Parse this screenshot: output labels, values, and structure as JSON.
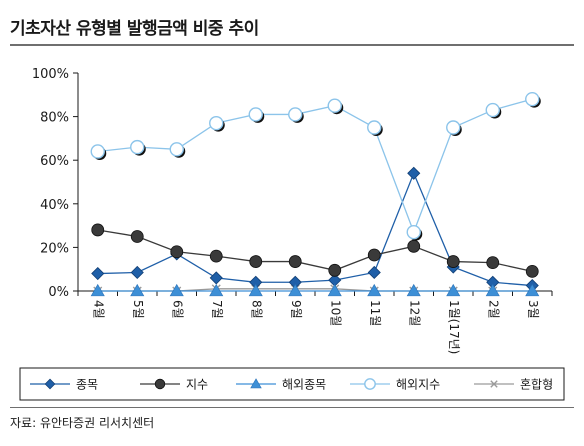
{
  "title": "기초자산 유형별 발행금액 비중 추이",
  "source": "자료: 유안타증권 리서치센터",
  "chart_data": {
    "type": "line",
    "categories": [
      "4월",
      "5월",
      "6월",
      "7월",
      "8월",
      "9월",
      "10월",
      "11월",
      "12월",
      "1월(17년)",
      "2월",
      "3월"
    ],
    "y_tick_labels": [
      "0%",
      "20%",
      "40%",
      "60%",
      "80%",
      "100%"
    ],
    "ylim": [
      0,
      100
    ],
    "grid": false,
    "legend_position": "bottom",
    "series": [
      {
        "name": "종목",
        "color": "#1f5fa8",
        "marker": "diamond",
        "values": [
          8,
          8.5,
          17,
          6,
          4,
          4,
          5,
          8.5,
          54,
          11,
          4,
          2.5
        ]
      },
      {
        "name": "지수",
        "color": "#3a3a3a",
        "marker": "circle",
        "values": [
          28,
          25,
          18,
          16,
          13.5,
          13.5,
          9.5,
          16.5,
          20.5,
          13.5,
          13,
          9
        ]
      },
      {
        "name": "해외종목",
        "color": "#3d8fd6",
        "marker": "triangle",
        "values": [
          0,
          0,
          0,
          0,
          0,
          0,
          0,
          0,
          0,
          0,
          0,
          0
        ]
      },
      {
        "name": "해외지수",
        "color": "#8cc4ea",
        "marker": "circle-open",
        "values": [
          64,
          66,
          65,
          77,
          81,
          81,
          85,
          75,
          27,
          75,
          83,
          88
        ]
      },
      {
        "name": "혼합형",
        "color": "#9a9a9a",
        "marker": "x",
        "values": [
          0,
          0,
          0,
          1,
          1,
          1,
          1,
          0,
          0,
          0,
          0,
          0
        ]
      }
    ]
  }
}
